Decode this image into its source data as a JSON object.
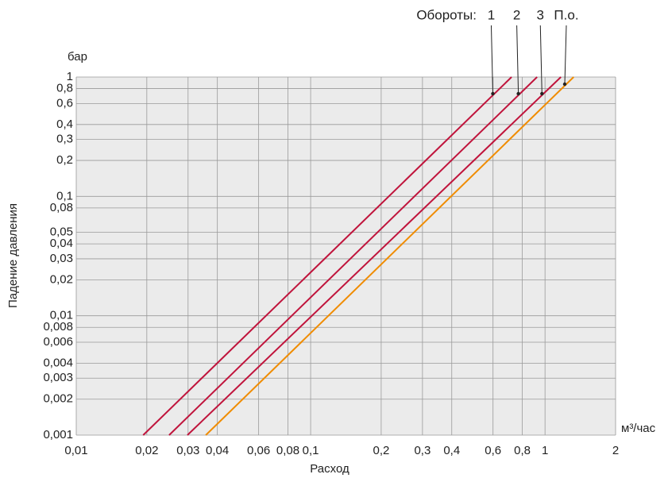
{
  "chart_data": {
    "type": "line",
    "log_x": true,
    "log_y": true,
    "grid": true,
    "legend_title": "Обороты:",
    "x_label": "Расход",
    "x_unit": "м³/час",
    "y_label": "Падение давления",
    "y_unit": "бар",
    "xlim": [
      0.01,
      2
    ],
    "ylim": [
      0.001,
      1
    ],
    "xticks": [
      {
        "value": 0.01,
        "label": "0,01"
      },
      {
        "value": 0.02,
        "label": "0,02"
      },
      {
        "value": 0.03,
        "label": "0,03"
      },
      {
        "value": 0.04,
        "label": "0,04"
      },
      {
        "value": 0.06,
        "label": "0,06"
      },
      {
        "value": 0.08,
        "label": "0,08"
      },
      {
        "value": 0.1,
        "label": "0,1"
      },
      {
        "value": 0.2,
        "label": "0,2"
      },
      {
        "value": 0.3,
        "label": "0,3"
      },
      {
        "value": 0.4,
        "label": "0,4"
      },
      {
        "value": 0.6,
        "label": "0,6"
      },
      {
        "value": 0.8,
        "label": "0,8"
      },
      1,
      2
    ],
    "yticks": [
      1,
      {
        "value": 0.8,
        "label": "0,8"
      },
      {
        "value": 0.6,
        "label": "0,6"
      },
      {
        "value": 0.4,
        "label": "0,4"
      },
      {
        "value": 0.3,
        "label": "0,3"
      },
      {
        "value": 0.2,
        "label": "0,2"
      },
      {
        "value": 0.1,
        "label": "0,1"
      },
      {
        "value": 0.08,
        "label": "0,08"
      },
      {
        "value": 0.05,
        "label": "0,05"
      },
      {
        "value": 0.04,
        "label": "0,04"
      },
      {
        "value": 0.03,
        "label": "0,03"
      },
      {
        "value": 0.02,
        "label": "0,02"
      },
      {
        "value": 0.01,
        "label": "0,01"
      },
      {
        "value": 0.008,
        "label": "0,008"
      },
      {
        "value": 0.006,
        "label": "0,006"
      },
      {
        "value": 0.004,
        "label": "0,004"
      },
      {
        "value": 0.003,
        "label": "0,003"
      },
      {
        "value": 0.002,
        "label": "0,002"
      },
      {
        "value": 0.001,
        "label": "0,001"
      }
    ],
    "series": [
      {
        "name": "1",
        "color": "#c0143c",
        "x": [
          0.0193,
          0.72
        ],
        "values": [
          0.001,
          1
        ]
      },
      {
        "name": "2",
        "color": "#c0143c",
        "x": [
          0.0249,
          0.925
        ],
        "values": [
          0.001,
          1
        ]
      },
      {
        "name": "3",
        "color": "#c0143c",
        "x": [
          0.0298,
          1.169
        ],
        "values": [
          0.001,
          1
        ]
      },
      {
        "name": "П.о.",
        "color": "#f08c00",
        "x": [
          0.0357,
          1.325
        ],
        "values": [
          0.001,
          1
        ]
      }
    ]
  }
}
